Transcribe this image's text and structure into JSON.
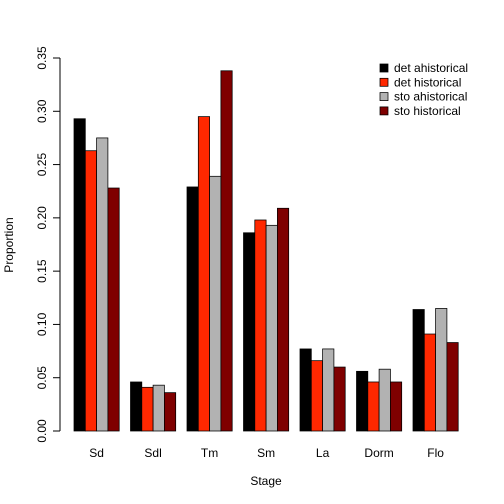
{
  "chart_data": {
    "type": "bar",
    "title": "",
    "xlabel": "Stage",
    "ylabel": "Proportion",
    "ylim": [
      0,
      0.35
    ],
    "yticks": [
      "0.00",
      "0.05",
      "0.10",
      "0.15",
      "0.20",
      "0.25",
      "0.30",
      "0.35"
    ],
    "categories": [
      "Sd",
      "Sdl",
      "Tm",
      "Sm",
      "La",
      "Dorm",
      "Flo"
    ],
    "legend_position": "top-right",
    "grid": false,
    "series": [
      {
        "name": "det ahistorical",
        "color": "#000000",
        "values": [
          0.293,
          0.046,
          0.229,
          0.186,
          0.077,
          0.056,
          0.114
        ]
      },
      {
        "name": "det historical",
        "color": "#ff2800",
        "values": [
          0.263,
          0.041,
          0.295,
          0.198,
          0.066,
          0.046,
          0.091
        ]
      },
      {
        "name": "sto ahistorical",
        "color": "#b2b2b2",
        "values": [
          0.275,
          0.043,
          0.239,
          0.193,
          0.077,
          0.058,
          0.115
        ]
      },
      {
        "name": "sto historical",
        "color": "#7f0000",
        "values": [
          0.228,
          0.036,
          0.338,
          0.209,
          0.06,
          0.046,
          0.083
        ]
      }
    ]
  }
}
